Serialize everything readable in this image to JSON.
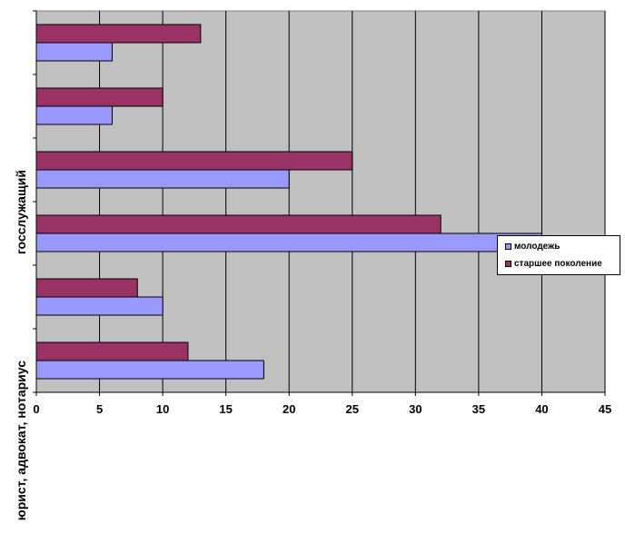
{
  "chart_data": {
    "type": "bar",
    "orientation": "horizontal",
    "categories": [
      "юрист, адвокат, нотариус",
      "",
      "",
      "госслужащий",
      "",
      ""
    ],
    "series": [
      {
        "name": "молодежь",
        "values": [
          18,
          10,
          40,
          20,
          6,
          6
        ],
        "color": "#9999ff"
      },
      {
        "name": "старшее поколение",
        "values": [
          12,
          8,
          32,
          25,
          10,
          13
        ],
        "color": "#993366"
      }
    ],
    "xlim": [
      0,
      45
    ],
    "xticks": [
      0,
      5,
      10,
      15,
      20,
      25,
      30,
      35,
      40,
      45
    ],
    "grid": true,
    "legend_position": "right",
    "plot_background": "#c0c0c0"
  }
}
